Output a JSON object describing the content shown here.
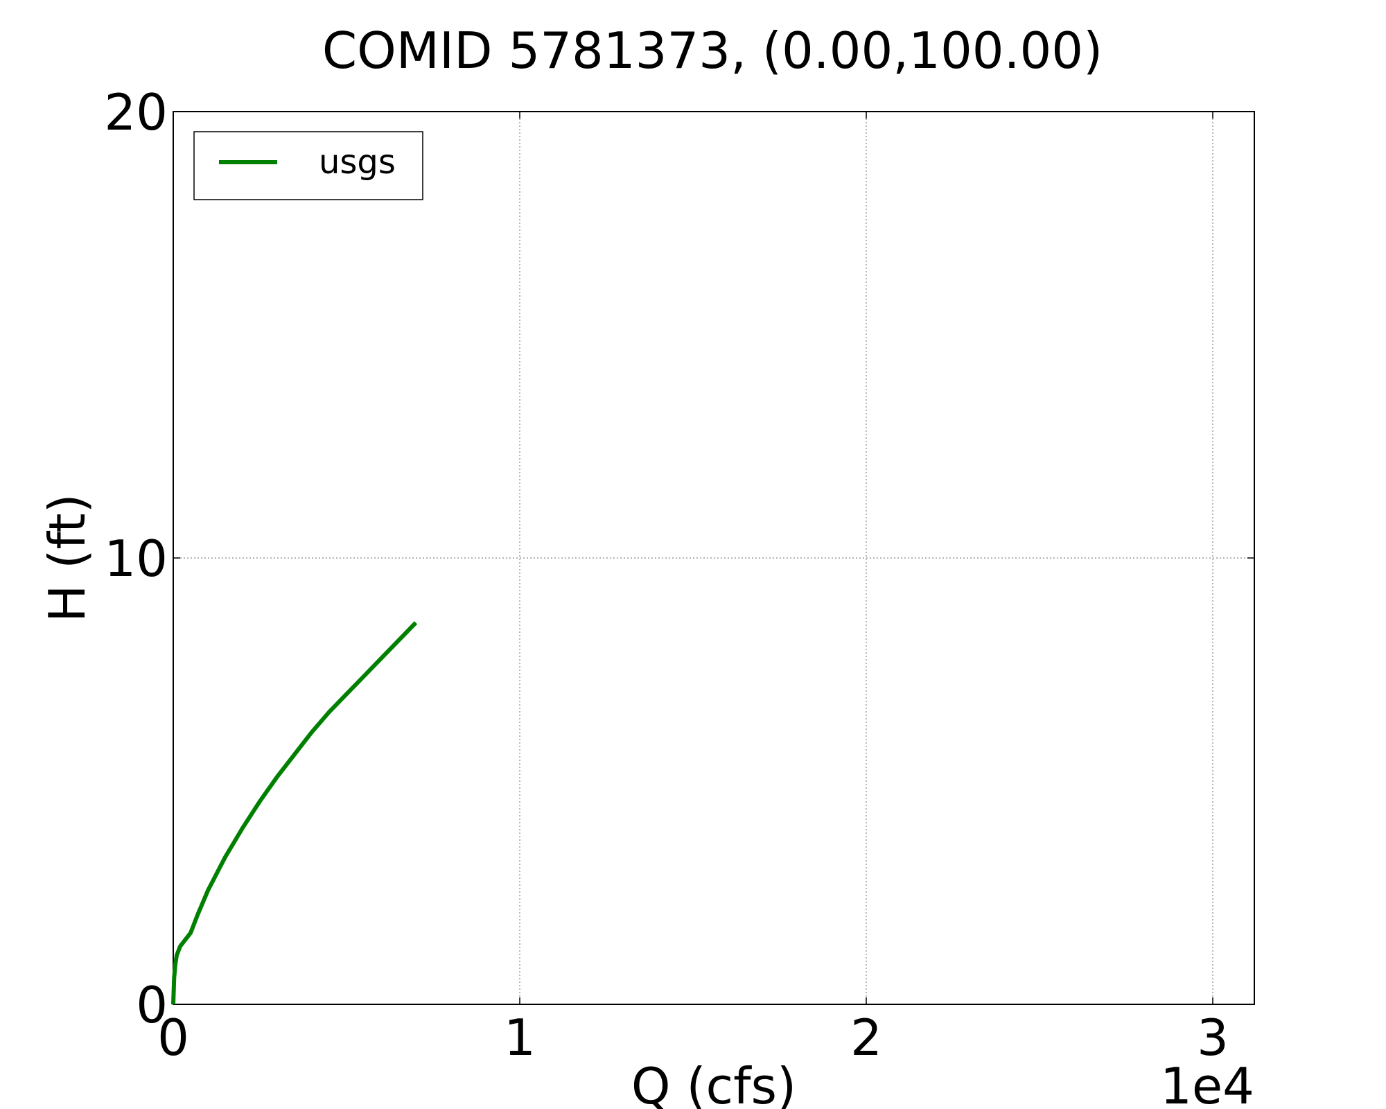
{
  "chart_data": {
    "type": "line",
    "title": "COMID 5781373, (0.00,100.00)",
    "xlabel": "Q (cfs)",
    "ylabel": "H (ft)",
    "x_offset_label": "1e4",
    "xlim": [
      0,
      31200
    ],
    "ylim": [
      0,
      20
    ],
    "xticks": [
      0,
      10000,
      20000,
      30000
    ],
    "xtick_labels": [
      "0",
      "1",
      "2",
      "3"
    ],
    "yticks": [
      0,
      10,
      20
    ],
    "ytick_labels": [
      "0",
      "10",
      "20"
    ],
    "grid": true,
    "legend_position": "top-left",
    "series": [
      {
        "name": "usgs",
        "color": "#008000",
        "x": [
          0,
          25,
          60,
          100,
          200,
          350,
          500,
          700,
          1000,
          1300,
          1500,
          2000,
          2500,
          3000,
          3500,
          4000,
          4500,
          5000,
          5500,
          6000,
          6500,
          7000
        ],
        "y": [
          0,
          0.6,
          0.9,
          1.1,
          1.3,
          1.45,
          1.6,
          2.0,
          2.55,
          3.0,
          3.3,
          3.95,
          4.55,
          5.1,
          5.6,
          6.1,
          6.55,
          6.95,
          7.35,
          7.75,
          8.15,
          8.55
        ]
      }
    ]
  }
}
